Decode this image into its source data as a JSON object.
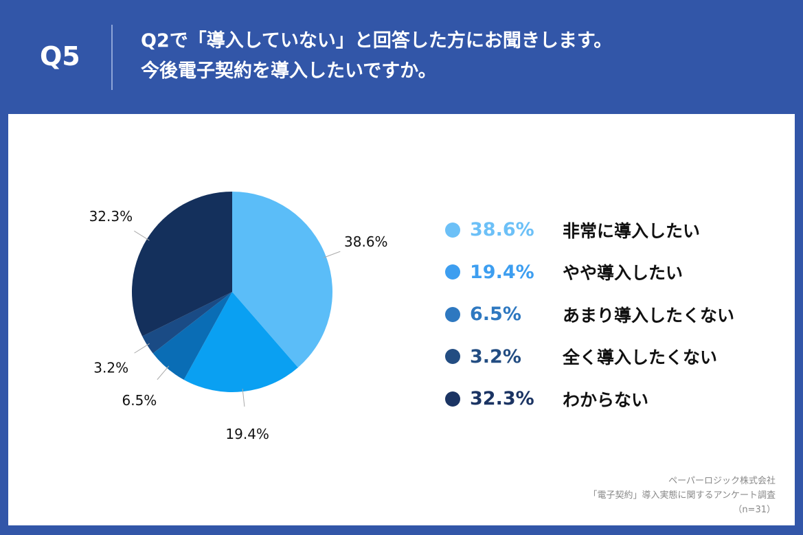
{
  "header": {
    "q": "Q5",
    "title_line1": "Q2で「導入していない」と回答した方にお聞きします。",
    "title_line2": "今後電子契約を導入したいですか。"
  },
  "chart_data": {
    "type": "pie",
    "categories": [
      "非常に導入したい",
      "やや導入したい",
      "あまり導入したくない",
      "全く導入したくない",
      "わからない"
    ],
    "values": [
      38.6,
      19.4,
      6.5,
      3.2,
      32.3
    ],
    "labels": [
      "38.6%",
      "19.4%",
      "6.5%",
      "3.2%",
      "32.3%"
    ],
    "colors": [
      "#5bbdf8",
      "#0aa0f2",
      "#0a6db5",
      "#1a4b85",
      "#14305c"
    ],
    "legend_colors": [
      "#6cc0f7",
      "#3d9ef0",
      "#2e78c0",
      "#234d82",
      "#1b3463"
    ],
    "legend": "right",
    "start": "top, clockwise"
  },
  "source": {
    "line1": "ペーパーロジック株式会社",
    "line2": "「電子契約」導入実態に関するアンケート調査",
    "line3": "（n=31）"
  }
}
